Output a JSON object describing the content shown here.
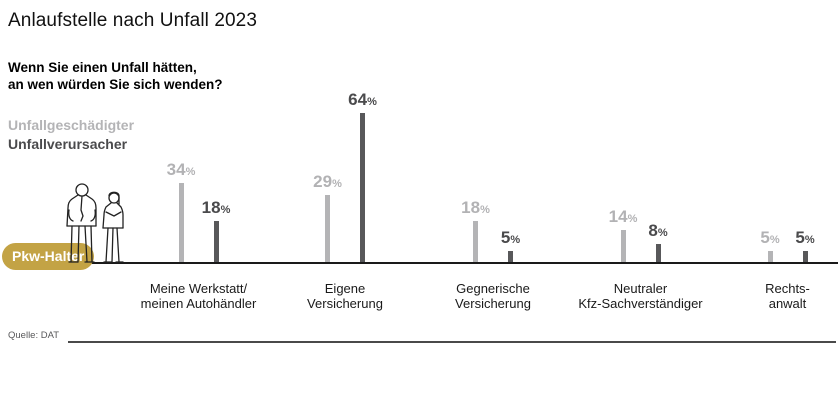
{
  "header": {
    "title": "Anlaufstelle nach Unfall 2023"
  },
  "question": {
    "line1": "Wenn Sie einen Unfall hätten,",
    "line2": "an wen würden Sie sich wenden?"
  },
  "badge": {
    "label": "Pkw-Halter"
  },
  "source": {
    "label": "Quelle: DAT"
  },
  "colors": {
    "series_victim": "#b4b4b6",
    "series_causer": "#58585a",
    "accent_gold": "#c3a345",
    "axis": "#1a1a1a"
  },
  "chart_data": {
    "type": "bar",
    "title": "Anlaufstelle nach Unfall 2023",
    "subtitle": "Wenn Sie einen Unfall hätten, an wen würden Sie sich wenden?",
    "unit": "%",
    "categories": [
      "Meine Werkstatt/\nmeinen Autohändler",
      "Eigene\nVersicherung",
      "Gegnerische\nVersicherung",
      "Neutraler\nKfz-Sachverständiger",
      "Rechts-\nanwalt"
    ],
    "series": [
      {
        "name": "Unfallgeschädigter",
        "values": [
          34,
          29,
          18,
          14,
          5
        ]
      },
      {
        "name": "Unfallverursacher",
        "values": [
          18,
          64,
          5,
          8,
          5
        ]
      }
    ],
    "ylim": [
      0,
      70
    ],
    "grid": false,
    "legend_position": "top-left",
    "group_label": "Pkw-Halter",
    "source": "Quelle: DAT"
  }
}
